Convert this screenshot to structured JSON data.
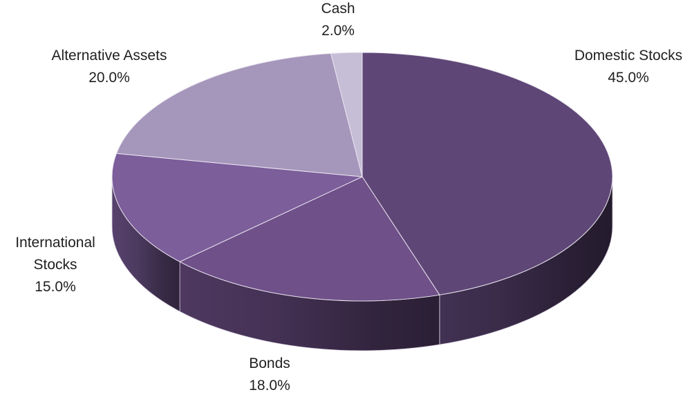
{
  "chart_data": {
    "type": "pie",
    "title": "",
    "slices": [
      {
        "label_lines": [
          "Domestic Stocks"
        ],
        "value": 45.0,
        "value_label": "45.0%",
        "color": "#5e4676"
      },
      {
        "label_lines": [
          "Bonds"
        ],
        "value": 18.0,
        "value_label": "18.0%",
        "color": "#6f5089"
      },
      {
        "label_lines": [
          "International",
          "Stocks"
        ],
        "value": 15.0,
        "value_label": "15.0%",
        "color": "#7c5e9b"
      },
      {
        "label_lines": [
          "Alternative Assets"
        ],
        "value": 20.0,
        "value_label": "20.0%",
        "color": "#a596bb"
      },
      {
        "label_lines": [
          "Cash"
        ],
        "value": 2.0,
        "value_label": "2.0%",
        "color": "#c6bdd6"
      }
    ],
    "start": "12 o'clock",
    "direction": "clockwise",
    "style": "3d"
  }
}
